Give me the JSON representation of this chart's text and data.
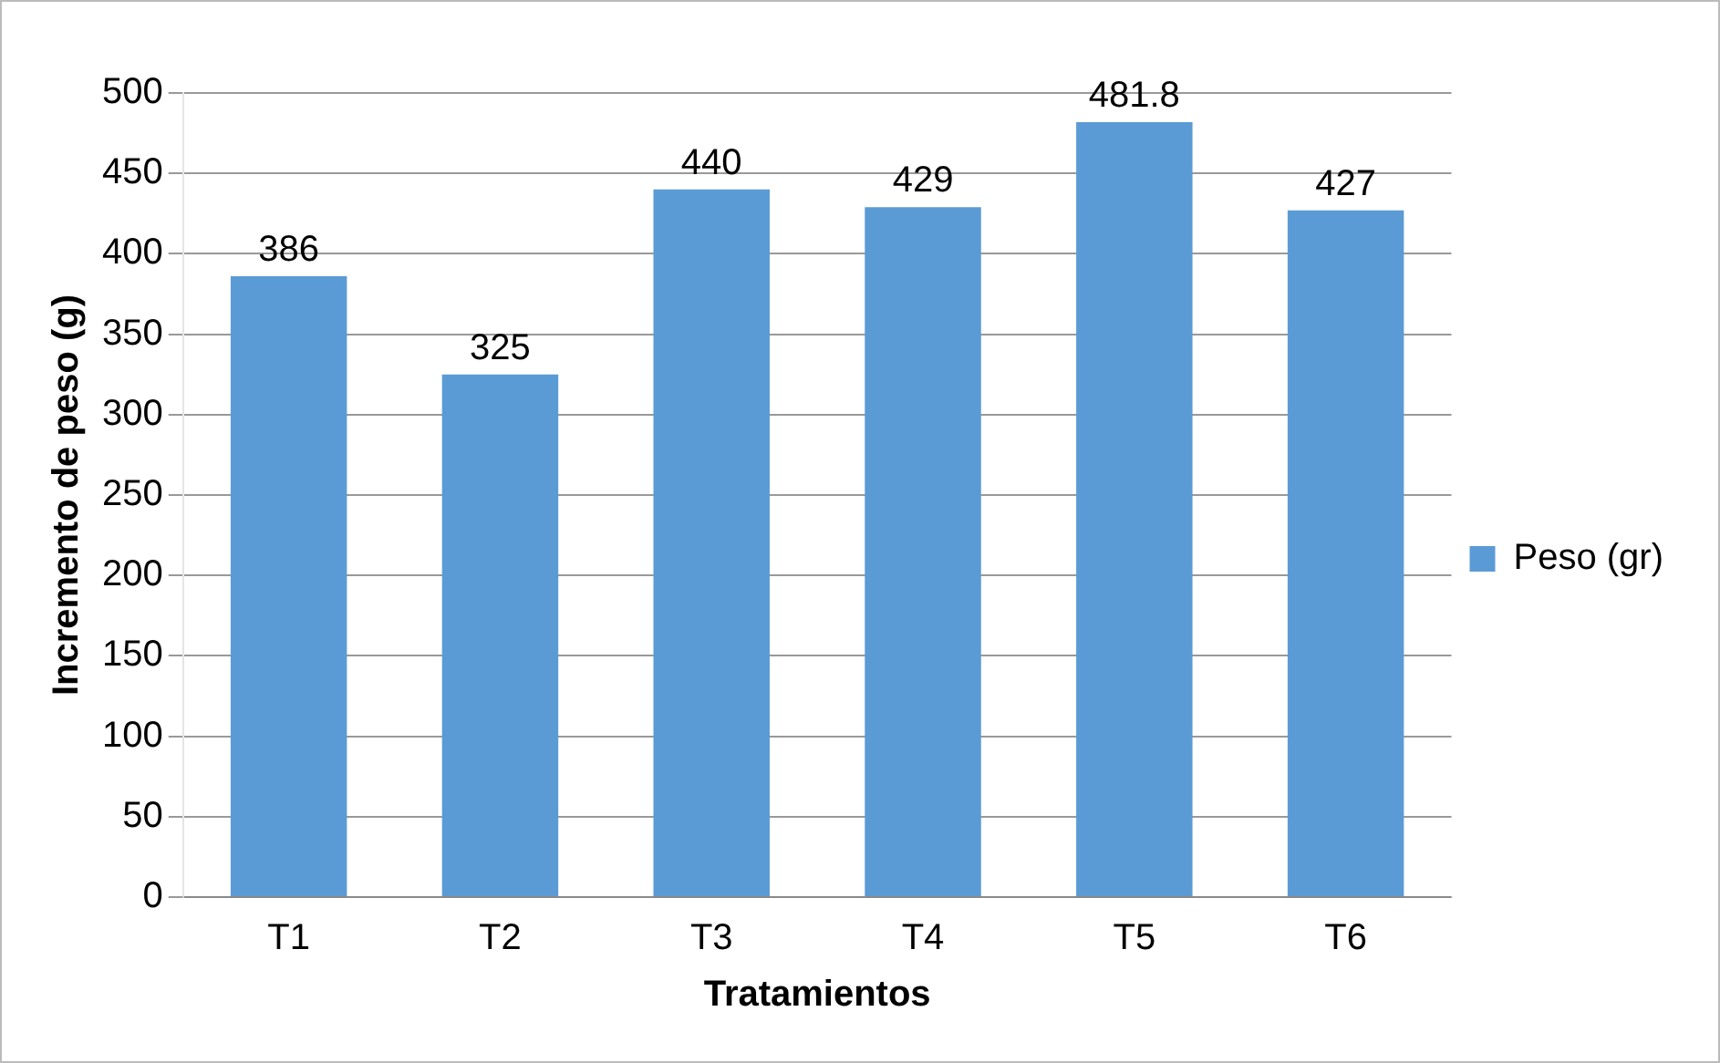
{
  "chart_data": {
    "type": "bar",
    "xlabel": "Tratamientos",
    "ylabel": "Incremento de peso (g)",
    "categories": [
      "T1",
      "T2",
      "T3",
      "T4",
      "T5",
      "T6"
    ],
    "series": [
      {
        "name": "Peso (gr)",
        "color": "#5b9bd5",
        "values": [
          386,
          325,
          440,
          429,
          481.8,
          427
        ]
      }
    ],
    "ylim": [
      0,
      500
    ],
    "yticks": [
      0,
      50,
      100,
      150,
      200,
      250,
      300,
      350,
      400,
      450,
      500
    ],
    "grid": "y",
    "legend": "right",
    "data_labels": true
  }
}
